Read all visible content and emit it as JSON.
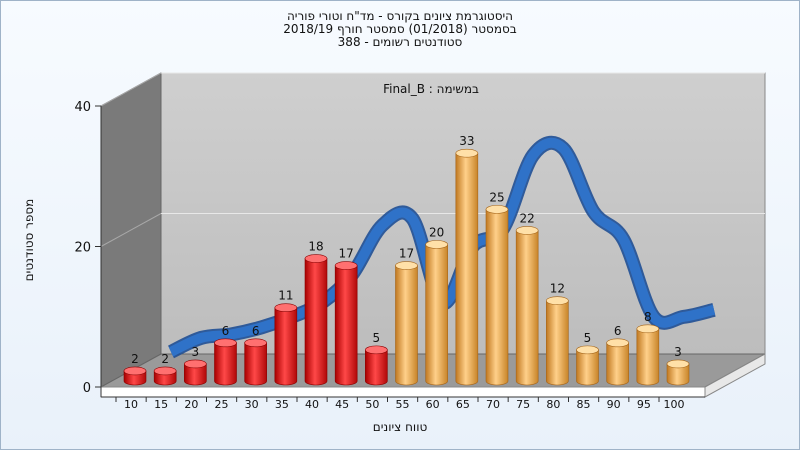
{
  "chart_data": {
    "type": "bar",
    "title": [
      "היסטוגרמת ציונים בקורס - מד\"ח וטורי פוריה",
      "בסמסטר  (01/2018)  סמסטר חורף 2018/19",
      "סטודנטים רשומים - 388"
    ],
    "subtitle": "Final_B : במשימה",
    "xlabel": "טווח ציונים",
    "ylabel": "מספר סטודנטים",
    "ylim": [
      0,
      40
    ],
    "yticks": [
      0,
      20,
      40
    ],
    "categories": [
      "10",
      "15",
      "20",
      "25",
      "30",
      "35",
      "40",
      "45",
      "50",
      "55",
      "60",
      "65",
      "70",
      "75",
      "80",
      "85",
      "90",
      "95",
      "100"
    ],
    "values": [
      2,
      2,
      3,
      6,
      6,
      11,
      18,
      17,
      5,
      17,
      20,
      33,
      25,
      22,
      12,
      5,
      6,
      8,
      3
    ],
    "colors": {
      "fail": "#e02020",
      "pass": "#f0a840",
      "curve": "#2f72c8",
      "back_wall": "#c4c4c4",
      "side_wall": "#7a7a7a",
      "floor": "#9a9a9a"
    },
    "fail_threshold": 55,
    "curve": {
      "x": [
        10,
        15,
        20,
        25,
        30,
        35,
        40,
        45,
        50,
        55,
        60,
        65,
        70,
        75,
        80,
        85,
        90,
        95,
        100
      ],
      "y": [
        2,
        4,
        4.5,
        5.5,
        7,
        9,
        13,
        20,
        21,
        9,
        17,
        19.5,
        30,
        31,
        22,
        18,
        7,
        7,
        8
      ]
    },
    "grid": true,
    "legend": "none"
  }
}
